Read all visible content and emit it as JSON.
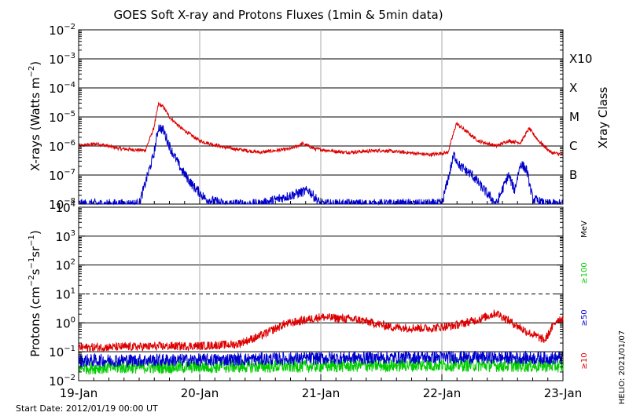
{
  "chart_data": {
    "title": "GOES Soft X-ray and Protons Fluxes   (1min & 5min data)",
    "x_tick_labels": [
      "19-Jan",
      "20-Jan",
      "21-Jan",
      "22-Jan",
      "23-Jan"
    ],
    "start_date_label": "Start Date: 2012/01/19 00:00 UT",
    "side_label": "HELIO: 2021/01/07",
    "xray_panel": {
      "type": "line",
      "ylabel": "X-rays (Watts m-2)",
      "yscale": "log",
      "ylim": [
        1e-08,
        0.01
      ],
      "tick_exponents": [
        -2,
        -3,
        -4,
        -5,
        -6,
        -7,
        -8
      ],
      "class_axis_label": "Xray Class",
      "classes": [
        {
          "label": "X10",
          "exp": -3
        },
        {
          "label": "X",
          "exp": -4
        },
        {
          "label": "M",
          "exp": -5
        },
        {
          "label": "C",
          "exp": -6
        },
        {
          "label": "B",
          "exp": -7
        }
      ],
      "series": [
        {
          "color": "#dd0000",
          "x": [
            0,
            0.15,
            0.35,
            0.55,
            0.62,
            0.66,
            0.7,
            0.75,
            0.85,
            1.0,
            1.2,
            1.5,
            1.75,
            1.85,
            1.95,
            2.2,
            2.5,
            2.7,
            2.9,
            3.05,
            3.12,
            3.3,
            3.45,
            3.55,
            3.65,
            3.72,
            3.8,
            3.9,
            4.0
          ],
          "y": [
            1e-06,
            1.2e-06,
            8e-07,
            7e-07,
            4e-06,
            2.8e-05,
            2.2e-05,
            1e-05,
            4e-06,
            1.5e-06,
            9e-07,
            6e-07,
            8e-07,
            1.2e-06,
            8e-07,
            6e-07,
            7e-07,
            6e-07,
            5e-07,
            6e-07,
            6e-06,
            1.5e-06,
            1e-06,
            1.5e-06,
            1.3e-06,
            4e-06,
            1.5e-06,
            6e-07,
            5e-07
          ]
        },
        {
          "color": "#0000cc",
          "x": [
            0,
            0.5,
            0.62,
            0.66,
            0.7,
            0.76,
            0.85,
            0.95,
            1.05,
            1.2,
            1.5,
            1.9,
            2.0,
            3.0,
            3.1,
            3.15,
            3.25,
            3.35,
            3.45,
            3.55,
            3.6,
            3.65,
            3.7,
            3.75,
            3.85,
            4.0
          ],
          "y": [
            1e-08,
            1e-08,
            5e-07,
            4.5e-06,
            3.5e-06,
            8e-07,
            1.5e-07,
            4e-08,
            1.5e-08,
            1e-08,
            1e-08,
            3e-08,
            1e-08,
            1e-08,
            5e-07,
            2e-07,
            1e-07,
            3e-08,
            1e-08,
            1e-07,
            3e-08,
            2.5e-07,
            1.5e-07,
            1.5e-08,
            1e-08,
            1e-08
          ]
        }
      ]
    },
    "proton_panel": {
      "type": "line",
      "ylabel": "Protons (cm-2s-1sr-1)",
      "yscale": "log",
      "ylim": [
        0.01,
        10000
      ],
      "tick_labels": [
        {
          "mant": "10",
          "exp": "4",
          "value": 10000
        },
        {
          "mant": "10",
          "exp": "3",
          "value": 1000
        },
        {
          "mant": "10",
          "exp": "2",
          "value": 100
        },
        {
          "mant": "10",
          "exp": "1",
          "value": 10
        },
        {
          "mant": "10",
          "exp": "0",
          "value": 1
        },
        {
          "mant": "10",
          "exp": "-1",
          "value": 0.1
        },
        {
          "mant": "10",
          "exp": "-2",
          "value": 0.01
        }
      ],
      "energy_unit": "MeV",
      "series": [
        {
          "name": "≥10",
          "color": "#dd0000",
          "x": [
            0,
            0.5,
            1.0,
            1.3,
            1.5,
            1.7,
            2.0,
            2.3,
            2.6,
            2.9,
            3.1,
            3.3,
            3.45,
            3.6,
            3.7,
            3.85,
            3.95,
            4.0
          ],
          "y": [
            0.14,
            0.15,
            0.16,
            0.18,
            0.35,
            0.9,
            1.6,
            1.3,
            0.7,
            0.65,
            0.8,
            1.3,
            2.2,
            0.9,
            0.5,
            0.25,
            1.3,
            1.4
          ]
        },
        {
          "name": "≥50",
          "color": "#0000cc",
          "x": [
            0,
            1.0,
            2.0,
            3.0,
            4.0
          ],
          "y": [
            0.05,
            0.052,
            0.06,
            0.065,
            0.06
          ]
        },
        {
          "name": "≥100",
          "color": "#00cc00",
          "x": [
            0,
            1.0,
            2.0,
            3.0,
            4.0
          ],
          "y": [
            0.028,
            0.03,
            0.032,
            0.035,
            0.032
          ]
        }
      ]
    }
  }
}
